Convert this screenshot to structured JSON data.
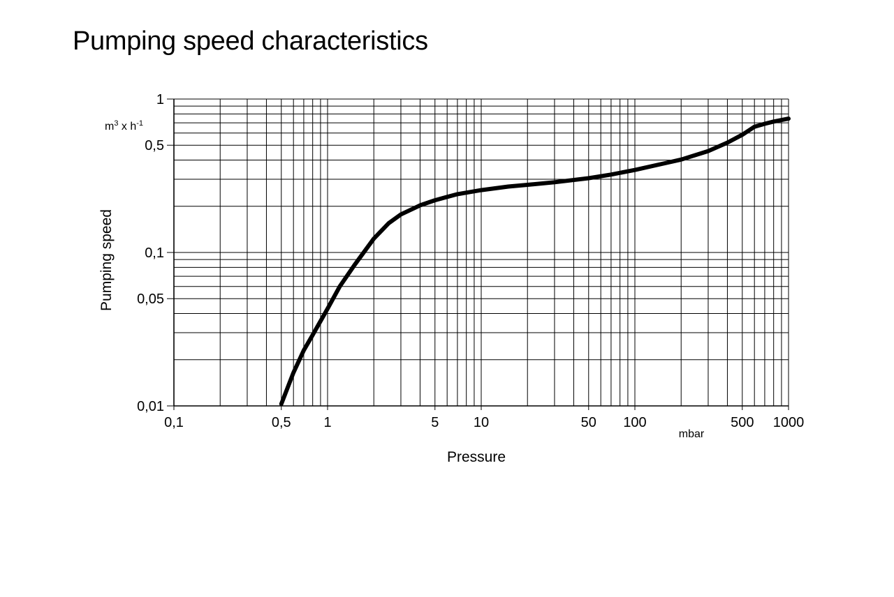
{
  "chart_data": {
    "type": "line",
    "title": "Pumping speed characteristics",
    "xlabel": "Pressure",
    "ylabel": "Pumping speed",
    "x_unit": "mbar",
    "y_unit_base": "m3 x h-1",
    "y_unit_parts": [
      "m",
      "3",
      " x h",
      "-1"
    ],
    "xscale": "log",
    "yscale": "log",
    "xlim": [
      0.1,
      1000
    ],
    "ylim": [
      0.01,
      1
    ],
    "grid": true,
    "x_ticks": [
      {
        "value": 0.1,
        "label": "0,1"
      },
      {
        "value": 0.5,
        "label": "0,5"
      },
      {
        "value": 1,
        "label": "1"
      },
      {
        "value": 5,
        "label": "5"
      },
      {
        "value": 10,
        "label": "10"
      },
      {
        "value": 50,
        "label": "50"
      },
      {
        "value": 100,
        "label": "100"
      },
      {
        "value": 500,
        "label": "500"
      },
      {
        "value": 1000,
        "label": "1000"
      }
    ],
    "y_ticks": [
      {
        "value": 0.01,
        "label": "0,01"
      },
      {
        "value": 0.05,
        "label": "0,05"
      },
      {
        "value": 0.1,
        "label": "0,1"
      },
      {
        "value": 0.5,
        "label": "0,5"
      },
      {
        "value": 1,
        "label": "1"
      }
    ],
    "series": [
      {
        "points": [
          [
            0.5,
            0.0103
          ],
          [
            0.6,
            0.0165
          ],
          [
            0.7,
            0.023
          ],
          [
            0.8,
            0.029
          ],
          [
            1.0,
            0.043
          ],
          [
            1.2,
            0.06
          ],
          [
            1.5,
            0.083
          ],
          [
            2.0,
            0.123
          ],
          [
            2.5,
            0.155
          ],
          [
            3.0,
            0.177
          ],
          [
            4.0,
            0.203
          ],
          [
            5.0,
            0.219
          ],
          [
            7.0,
            0.24
          ],
          [
            10.0,
            0.255
          ],
          [
            15.0,
            0.269
          ],
          [
            20.0,
            0.276
          ],
          [
            30.0,
            0.287
          ],
          [
            50.0,
            0.305
          ],
          [
            70.0,
            0.322
          ],
          [
            100.0,
            0.345
          ],
          [
            150.0,
            0.378
          ],
          [
            200.0,
            0.403
          ],
          [
            300.0,
            0.458
          ],
          [
            400.0,
            0.52
          ],
          [
            500.0,
            0.585
          ],
          [
            600.0,
            0.66
          ],
          [
            700.0,
            0.69
          ],
          [
            800.0,
            0.713
          ],
          [
            1000.0,
            0.745
          ]
        ]
      }
    ]
  }
}
